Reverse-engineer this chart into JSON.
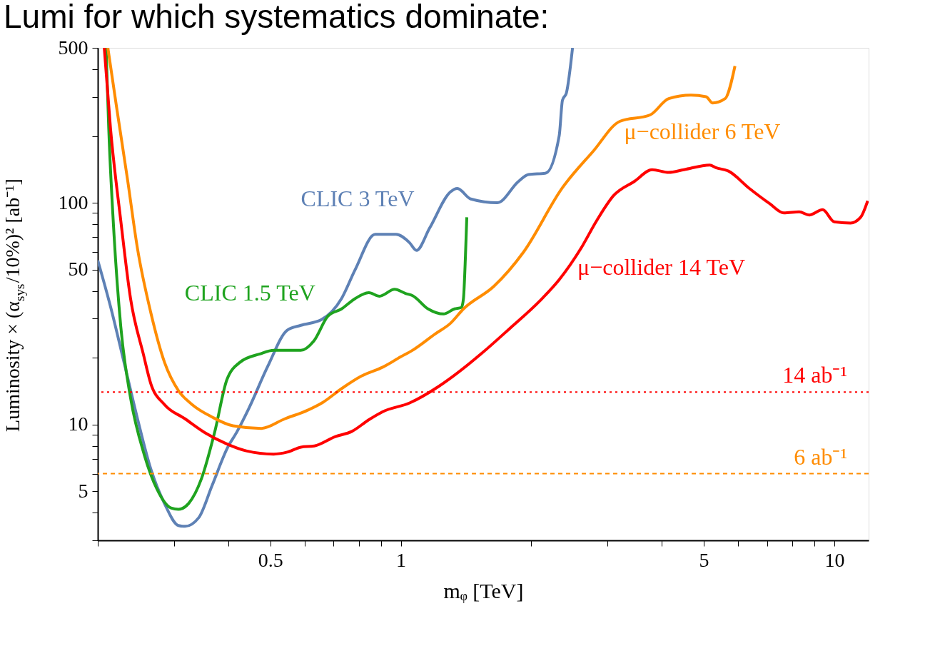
{
  "chart_data": {
    "type": "line",
    "title": "Lumi for which systematics dominate:",
    "xlabel": "mᵩ  [TeV]",
    "ylabel": "Luminosity × (α$_{sys}$/10%)²   [ab⁻¹]",
    "log": "xy",
    "xlim": [
      0.2,
      12
    ],
    "ylim": [
      3,
      500
    ],
    "xticks": [
      {
        "value": 0.2,
        "label": null
      },
      {
        "value": 0.3,
        "label": null
      },
      {
        "value": 0.4,
        "label": null
      },
      0.5,
      {
        "value": 0.6,
        "label": null
      },
      {
        "value": 0.7,
        "label": null
      },
      {
        "value": 0.8,
        "label": null
      },
      {
        "value": 0.9,
        "label": null
      },
      1,
      {
        "value": 2,
        "label": null
      },
      {
        "value": 3,
        "label": null
      },
      {
        "value": 4,
        "label": null
      },
      5,
      {
        "value": 6,
        "label": null
      },
      {
        "value": 7,
        "label": null
      },
      {
        "value": 8,
        "label": null
      },
      {
        "value": 9,
        "label": null
      },
      10
    ],
    "yticks": [
      {
        "value": 3,
        "label": null
      },
      {
        "value": 4,
        "label": null
      },
      5,
      {
        "value": 6,
        "label": null
      },
      {
        "value": 7,
        "label": null
      },
      {
        "value": 8,
        "label": null
      },
      {
        "value": 9,
        "label": null
      },
      10,
      {
        "value": 20,
        "label": null
      },
      {
        "value": 30,
        "label": null
      },
      {
        "value": 40,
        "label": null
      },
      50,
      {
        "value": 60,
        "label": null
      },
      {
        "value": 70,
        "label": null
      },
      {
        "value": 80,
        "label": null
      },
      {
        "value": 90,
        "label": null
      },
      100,
      {
        "value": 200,
        "label": null
      },
      {
        "value": 300,
        "label": null
      },
      {
        "value": 400,
        "label": null
      },
      500
    ],
    "grid": false,
    "marker": "none",
    "line_style": "solid",
    "series": [
      {
        "name": "CLIC 3 TeV",
        "color": "#5e81b5",
        "x": [
          0.2,
          0.214,
          0.23,
          0.247,
          0.265,
          0.285,
          0.307,
          0.318,
          0.342,
          0.367,
          0.399,
          0.418,
          0.446,
          0.494,
          0.547,
          0.588,
          0.656,
          0.73,
          0.785,
          0.873,
          0.975,
          1.048,
          1.087,
          1.166,
          1.302,
          1.35,
          1.45,
          1.67,
          1.87,
          1.97,
          2.16,
          2.32,
          2.36,
          2.41,
          2.49
        ],
        "values": [
          55,
          34,
          19,
          10.6,
          6.3,
          4.4,
          3.5,
          3.47,
          3.8,
          5.3,
          7.9,
          9.2,
          11.8,
          18.4,
          26.6,
          28,
          29.7,
          37,
          50,
          72,
          72,
          66,
          61,
          77,
          112,
          116,
          104,
          100,
          125,
          134,
          136,
          201,
          290,
          313,
          500
        ]
      },
      {
        "name": "CLIC 1.5 TeV",
        "color": "#1fa31f",
        "x": [
          0.209,
          0.212,
          0.218,
          0.226,
          0.238,
          0.256,
          0.274,
          0.295,
          0.307,
          0.324,
          0.347,
          0.372,
          0.397,
          0.426,
          0.473,
          0.509,
          0.588,
          0.63,
          0.679,
          0.73,
          0.785,
          0.844,
          0.893,
          0.968,
          1.025,
          1.065,
          1.156,
          1.255,
          1.33,
          1.38,
          1.395,
          1.41,
          1.42
        ],
        "values": [
          500,
          216,
          72,
          27.6,
          13.2,
          7.3,
          5.1,
          4.2,
          4.14,
          4.4,
          5.7,
          9.2,
          15.9,
          19.1,
          20.8,
          21.6,
          21.6,
          23.8,
          30.8,
          33.2,
          37,
          39.3,
          37.9,
          40.7,
          39,
          38.1,
          33.2,
          31.5,
          33.2,
          33.7,
          37,
          58,
          86
        ]
      },
      {
        "name": "μ−collider 6 TeV",
        "color": "#ff8c00",
        "x": [
          0.211,
          0.221,
          0.234,
          0.247,
          0.265,
          0.285,
          0.307,
          0.33,
          0.367,
          0.41,
          0.477,
          0.54,
          0.61,
          0.662,
          0.73,
          0.81,
          0.912,
          1.0,
          1.06,
          1.2,
          1.302,
          1.395,
          1.64,
          1.92,
          2.36,
          2.78,
          3.2,
          3.76,
          4.15,
          4.67,
          5.06,
          5.24,
          5.6,
          5.9
        ],
        "values": [
          500,
          270,
          129,
          62,
          32,
          19.1,
          14.2,
          12.3,
          10.8,
          9.86,
          9.6,
          10.6,
          11.6,
          12.6,
          14.5,
          16.5,
          18.2,
          20.2,
          21.5,
          25.6,
          28.6,
          33.2,
          42,
          60,
          117,
          171,
          233,
          249,
          295,
          306,
          301,
          282,
          295,
          414
        ]
      },
      {
        "name": "μ−collider 14 TeV",
        "color": "#ff0000",
        "x": [
          0.207,
          0.214,
          0.226,
          0.238,
          0.255,
          0.265,
          0.285,
          0.318,
          0.354,
          0.395,
          0.44,
          0.509,
          0.547,
          0.588,
          0.632,
          0.705,
          0.771,
          0.844,
          0.907,
          1.048,
          1.22,
          1.32,
          1.54,
          1.78,
          2.09,
          2.32,
          2.6,
          2.83,
          3.1,
          3.46,
          3.8,
          4.15,
          4.5,
          5.16,
          5.33,
          5.7,
          6.37,
          7.1,
          7.65,
          8.3,
          8.75,
          9.4,
          10.0,
          10.9,
          11.5,
          11.94
        ],
        "values": [
          500,
          216,
          83,
          37,
          20.6,
          15.3,
          12.3,
          10.6,
          9.16,
          8.2,
          7.6,
          7.35,
          7.5,
          7.9,
          8.0,
          8.8,
          9.3,
          10.5,
          11.4,
          12.5,
          14.8,
          16.5,
          21,
          27,
          36,
          45,
          62,
          83,
          108,
          125,
          141,
          137,
          141,
          148,
          144,
          139,
          116,
          99,
          90,
          91,
          88,
          93,
          82,
          81,
          86,
          102
        ]
      }
    ],
    "ref_lines": [
      {
        "axis": "y",
        "value": 14,
        "label": "14 ab⁻¹",
        "color": "#ff0000",
        "line_style": "dotted"
      },
      {
        "axis": "y",
        "value": 6,
        "label": "6 ab⁻¹",
        "color": "#ff8c00",
        "line_style": "dashed"
      }
    ]
  }
}
